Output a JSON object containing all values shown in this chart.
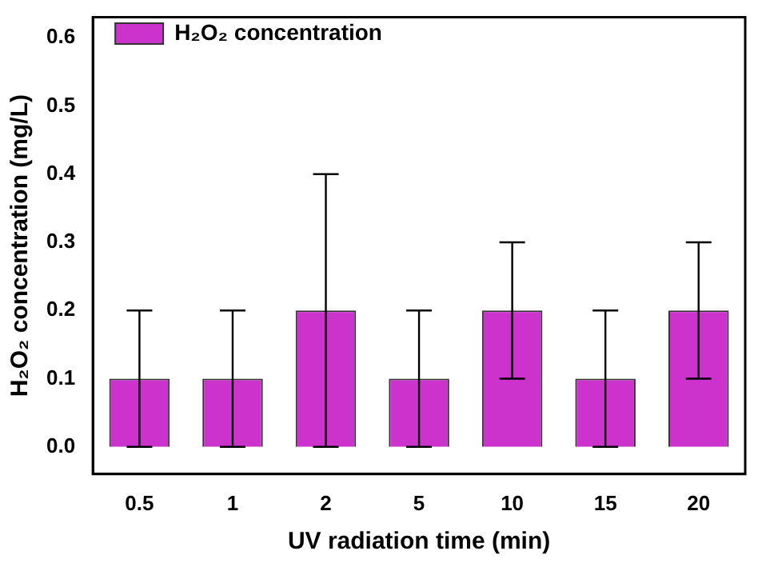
{
  "chart_data": {
    "type": "bar",
    "xlabel": "UV radiation time (min)",
    "ylabel": "H₂O₂ concentration (mg/L)",
    "categories": [
      "0.5",
      "1",
      "2",
      "5",
      "10",
      "15",
      "20"
    ],
    "series": [
      {
        "name": "H₂O₂ concentration",
        "color": "#cc33cc",
        "values": [
          0.1,
          0.1,
          0.2,
          0.1,
          0.2,
          0.1,
          0.2
        ],
        "errors": [
          0.1,
          0.1,
          0.2,
          0.1,
          0.1,
          0.1,
          0.1
        ]
      }
    ],
    "ylim": [
      -0.04,
      0.63
    ],
    "yticks": [
      {
        "value": 0,
        "label": "0.0"
      },
      0.1,
      0.2,
      0.3,
      0.4,
      0.5,
      0.6
    ],
    "grid": false,
    "legend": "top left"
  }
}
